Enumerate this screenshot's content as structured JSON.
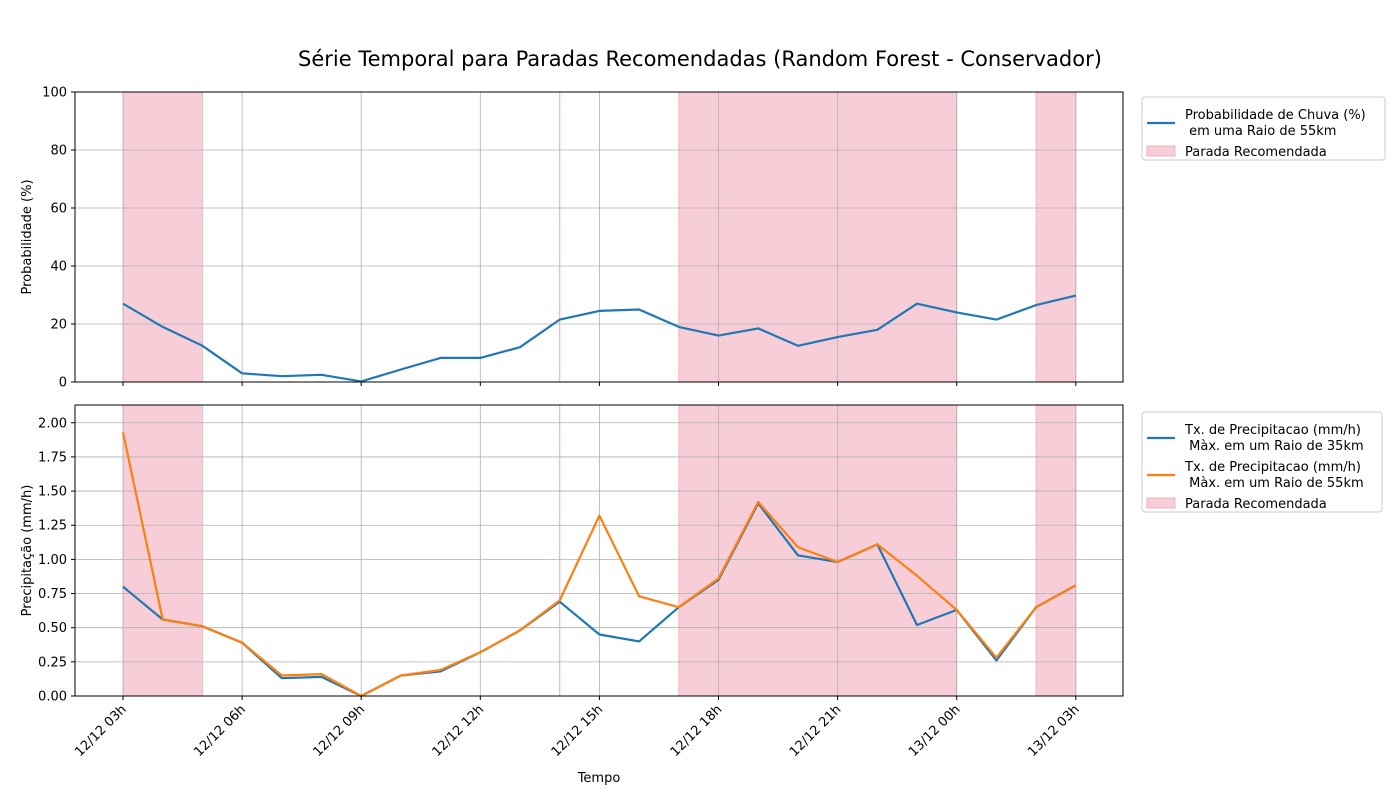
{
  "chart_data": [
    {
      "type": "line",
      "title": "Série Temporal para Paradas Recomendadas (Random Forest - Conservador)",
      "xlabel": "",
      "ylabel": "Probabilidade (%)",
      "ylim": [
        0,
        100
      ],
      "yticks": [
        0,
        20,
        40,
        60,
        80,
        100
      ],
      "ytick_labels": [
        "0",
        "20",
        "40",
        "60",
        "80",
        "100"
      ],
      "grid": true,
      "legend": "outside-right",
      "x": [
        "12/12 03h",
        "12/12 04h",
        "12/12 05h",
        "12/12 06h",
        "12/12 07h",
        "12/12 08h",
        "12/12 09h",
        "12/12 10h",
        "12/12 11h",
        "12/12 12h",
        "12/12 13h",
        "12/12 14h",
        "12/12 15h",
        "12/12 16h",
        "12/12 17h",
        "12/12 18h",
        "12/12 19h",
        "12/12 20h",
        "12/12 21h",
        "12/12 22h",
        "12/12 23h",
        "13/12 00h",
        "13/12 01h",
        "13/12 02h",
        "13/12 03h"
      ],
      "series": [
        {
          "name": "Probabilidade de Chuva (%)\n em uma Raio de 55km",
          "color": "#1f77b4",
          "values": [
            27,
            19,
            12.5,
            3,
            2,
            2.5,
            0.2,
            4.3,
            8.3,
            8.3,
            12,
            21.5,
            24.5,
            25,
            19,
            16,
            18.5,
            12.5,
            15.5,
            18,
            27,
            24,
            21.5,
            26.5,
            29.8
          ]
        }
      ],
      "stops": {
        "name": "Parada Recomendada",
        "color": "#f7ced8",
        "ranges": [
          [
            "12/12 03h",
            "12/12 05h"
          ],
          [
            "12/12 14h",
            "12/12 14h"
          ],
          [
            "12/12 17h",
            "13/12 00h"
          ],
          [
            "13/12 02h",
            "13/12 03h"
          ]
        ]
      }
    },
    {
      "type": "line",
      "title": "",
      "xlabel": "Tempo",
      "ylabel": "Precipitação (mm/h)",
      "ylim": [
        0,
        2.13
      ],
      "yticks": [
        0,
        0.25,
        0.5,
        0.75,
        1.0,
        1.25,
        1.5,
        1.75,
        2.0
      ],
      "ytick_labels": [
        "0.00",
        "0.25",
        "0.50",
        "0.75",
        "1.00",
        "1.25",
        "1.50",
        "1.75",
        "2.00"
      ],
      "xticks": [
        "12/12 03h",
        "12/12 06h",
        "12/12 09h",
        "12/12 12h",
        "12/12 15h",
        "12/12 18h",
        "12/12 21h",
        "13/12 00h",
        "13/12 03h"
      ],
      "grid": true,
      "legend": "outside-right",
      "x": [
        "12/12 03h",
        "12/12 04h",
        "12/12 05h",
        "12/12 06h",
        "12/12 07h",
        "12/12 08h",
        "12/12 09h",
        "12/12 10h",
        "12/12 11h",
        "12/12 12h",
        "12/12 13h",
        "12/12 14h",
        "12/12 15h",
        "12/12 16h",
        "12/12 17h",
        "12/12 18h",
        "12/12 19h",
        "12/12 20h",
        "12/12 21h",
        "12/12 22h",
        "12/12 23h",
        "13/12 00h",
        "13/12 01h",
        "13/12 02h",
        "13/12 03h"
      ],
      "series": [
        {
          "name": "Tx. de Precipitacao (mm/h)\n Màx. em um Raio de 35km",
          "color": "#1f77b4",
          "values": [
            0.8,
            0.56,
            0.51,
            0.39,
            0.13,
            0.14,
            0.0,
            0.15,
            0.18,
            0.32,
            0.48,
            0.69,
            0.45,
            0.4,
            0.65,
            0.85,
            1.41,
            1.03,
            0.98,
            1.11,
            0.52,
            0.63,
            0.26,
            0.65,
            0.81
          ]
        },
        {
          "name": "Tx. de Precipitacao (mm/h)\n Màx. em um Raio de 55km",
          "color": "#ff7f0e",
          "values": [
            1.93,
            0.56,
            0.51,
            0.39,
            0.15,
            0.16,
            0.0,
            0.15,
            0.19,
            0.32,
            0.48,
            0.7,
            1.32,
            0.73,
            0.65,
            0.86,
            1.42,
            1.09,
            0.98,
            1.11,
            0.88,
            0.63,
            0.28,
            0.65,
            0.81
          ]
        }
      ],
      "stops": {
        "name": "Parada Recomendada",
        "color": "#f7ced8",
        "ranges": [
          [
            "12/12 03h",
            "12/12 05h"
          ],
          [
            "12/12 14h",
            "12/12 14h"
          ],
          [
            "12/12 17h",
            "13/12 00h"
          ],
          [
            "13/12 02h",
            "13/12 03h"
          ]
        ]
      }
    }
  ]
}
